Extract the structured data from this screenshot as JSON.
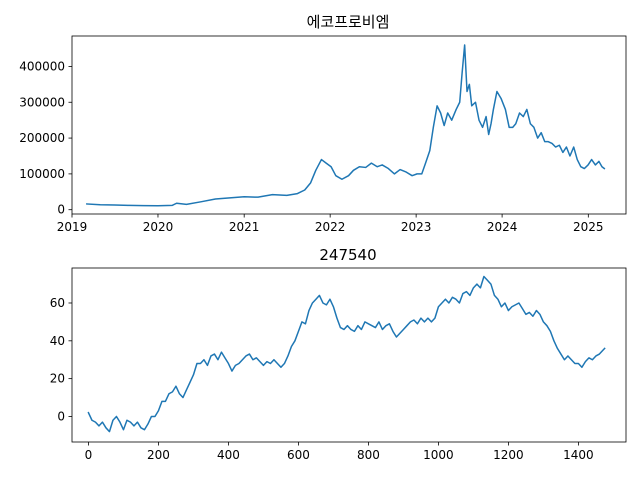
{
  "chart_data": [
    {
      "type": "line",
      "title": "에코프로비엠",
      "xlabel": "",
      "ylabel": "",
      "x_axis": "date",
      "xlim": [
        "2019-01-01",
        "2025-06-10"
      ],
      "ylim": [
        -12000,
        485000
      ],
      "x_ticks": [
        "2019",
        "2020",
        "2021",
        "2022",
        "2023",
        "2024",
        "2025"
      ],
      "y_ticks": [
        "0",
        "100000",
        "200000",
        "300000",
        "400000"
      ],
      "y_tick_values": [
        0,
        100000,
        200000,
        300000,
        400000
      ],
      "grid": false,
      "series": [
        {
          "color": "#1f77b4",
          "x": [
            "2019-03-05",
            "2019-05-01",
            "2019-07-01",
            "2019-09-01",
            "2019-11-01",
            "2020-01-01",
            "2020-03-01",
            "2020-03-20",
            "2020-05-01",
            "2020-07-01",
            "2020-09-01",
            "2020-11-01",
            "2021-01-01",
            "2021-03-01",
            "2021-05-01",
            "2021-07-01",
            "2021-08-15",
            "2021-09-15",
            "2021-10-10",
            "2021-11-01",
            "2021-11-25",
            "2021-12-15",
            "2022-01-05",
            "2022-01-25",
            "2022-02-20",
            "2022-03-20",
            "2022-04-10",
            "2022-05-05",
            "2022-06-01",
            "2022-06-25",
            "2022-07-20",
            "2022-08-10",
            "2022-09-05",
            "2022-10-01",
            "2022-10-25",
            "2022-11-20",
            "2022-12-15",
            "2023-01-05",
            "2023-01-25",
            "2023-02-10",
            "2023-02-28",
            "2023-03-15",
            "2023-03-31",
            "2023-04-15",
            "2023-04-30",
            "2023-05-15",
            "2023-06-01",
            "2023-06-20",
            "2023-07-05",
            "2023-07-15",
            "2023-07-26",
            "2023-08-05",
            "2023-08-15",
            "2023-08-25",
            "2023-09-10",
            "2023-09-25",
            "2023-10-10",
            "2023-10-25",
            "2023-11-05",
            "2023-11-15",
            "2023-11-25",
            "2023-12-10",
            "2023-12-28",
            "2024-01-15",
            "2024-01-31",
            "2024-02-15",
            "2024-02-28",
            "2024-03-15",
            "2024-03-31",
            "2024-04-15",
            "2024-04-30",
            "2024-05-15",
            "2024-05-31",
            "2024-06-15",
            "2024-06-30",
            "2024-07-15",
            "2024-07-31",
            "2024-08-15",
            "2024-08-31",
            "2024-09-15",
            "2024-09-30",
            "2024-10-15",
            "2024-10-31",
            "2024-11-15",
            "2024-11-30",
            "2024-12-15",
            "2024-12-31",
            "2025-01-15",
            "2025-01-31",
            "2025-02-15",
            "2025-02-28",
            "2025-03-10"
          ],
          "values": [
            16000,
            14000,
            13000,
            12000,
            11500,
            11000,
            12000,
            18000,
            15000,
            22000,
            30000,
            33000,
            36000,
            35000,
            42000,
            40000,
            45000,
            55000,
            75000,
            110000,
            140000,
            130000,
            120000,
            95000,
            85000,
            95000,
            110000,
            120000,
            118000,
            130000,
            120000,
            125000,
            115000,
            100000,
            112000,
            105000,
            95000,
            100000,
            100000,
            130000,
            165000,
            230000,
            290000,
            270000,
            235000,
            270000,
            250000,
            280000,
            300000,
            380000,
            460000,
            330000,
            350000,
            290000,
            300000,
            250000,
            230000,
            260000,
            210000,
            240000,
            280000,
            330000,
            310000,
            280000,
            230000,
            230000,
            240000,
            270000,
            260000,
            280000,
            240000,
            230000,
            200000,
            215000,
            190000,
            190000,
            185000,
            175000,
            180000,
            160000,
            175000,
            150000,
            175000,
            140000,
            120000,
            115000,
            125000,
            140000,
            125000,
            135000,
            120000,
            115000
          ]
        }
      ]
    },
    {
      "type": "line",
      "title": "247540",
      "xlabel": "",
      "ylabel": "",
      "xlim": [
        -47,
        1536
      ],
      "ylim": [
        -13.5,
        78.5
      ],
      "x_ticks": [
        0,
        200,
        400,
        600,
        800,
        1000,
        1200,
        1400
      ],
      "y_ticks": [
        0,
        20,
        40,
        60
      ],
      "grid": false,
      "series": [
        {
          "color": "#1f77b4",
          "x": [
            0,
            10,
            20,
            30,
            40,
            50,
            60,
            70,
            80,
            90,
            100,
            110,
            120,
            130,
            140,
            150,
            160,
            170,
            180,
            190,
            200,
            210,
            220,
            230,
            240,
            250,
            260,
            270,
            280,
            290,
            300,
            310,
            320,
            330,
            340,
            350,
            360,
            370,
            380,
            390,
            400,
            410,
            420,
            430,
            440,
            450,
            460,
            470,
            480,
            490,
            500,
            510,
            520,
            530,
            540,
            550,
            560,
            570,
            580,
            590,
            600,
            610,
            620,
            630,
            640,
            650,
            660,
            670,
            680,
            690,
            700,
            710,
            720,
            730,
            740,
            750,
            760,
            770,
            780,
            790,
            800,
            810,
            820,
            830,
            840,
            850,
            860,
            870,
            880,
            890,
            900,
            910,
            920,
            930,
            940,
            950,
            960,
            970,
            980,
            990,
            1000,
            1010,
            1020,
            1030,
            1040,
            1050,
            1060,
            1070,
            1080,
            1090,
            1100,
            1110,
            1120,
            1130,
            1140,
            1150,
            1160,
            1170,
            1180,
            1190,
            1200,
            1210,
            1220,
            1230,
            1240,
            1250,
            1260,
            1270,
            1280,
            1290,
            1300,
            1310,
            1320,
            1330,
            1340,
            1350,
            1360,
            1370,
            1380,
            1390,
            1400,
            1410,
            1420,
            1430,
            1440,
            1450,
            1460,
            1470,
            1475
          ],
          "values": [
            2,
            -2,
            -3,
            -5,
            -3,
            -6,
            -8,
            -2,
            0,
            -3,
            -7,
            -2,
            -3,
            -5,
            -3,
            -6,
            -7,
            -4,
            0,
            0,
            3,
            8,
            8,
            12,
            13,
            16,
            12,
            10,
            14,
            18,
            22,
            28,
            28,
            30,
            27,
            32,
            33,
            30,
            34,
            31,
            28,
            24,
            27,
            28,
            30,
            32,
            33,
            30,
            31,
            29,
            27,
            29,
            28,
            30,
            28,
            26,
            28,
            32,
            37,
            40,
            45,
            50,
            49,
            56,
            60,
            62,
            64,
            60,
            59,
            62,
            58,
            52,
            47,
            46,
            48,
            46,
            45,
            48,
            46,
            50,
            49,
            48,
            47,
            50,
            46,
            48,
            49,
            45,
            42,
            44,
            46,
            48,
            50,
            51,
            49,
            52,
            50,
            52,
            50,
            52,
            58,
            60,
            62,
            60,
            63,
            62,
            60,
            65,
            66,
            64,
            68,
            70,
            68,
            74,
            72,
            70,
            64,
            62,
            58,
            60,
            56,
            58,
            59,
            60,
            57,
            54,
            55,
            53,
            56,
            54,
            50,
            48,
            45,
            40,
            36,
            33,
            30,
            32,
            30,
            28,
            28,
            26,
            29,
            31,
            30,
            32,
            33,
            35,
            36
          ]
        }
      ]
    }
  ]
}
